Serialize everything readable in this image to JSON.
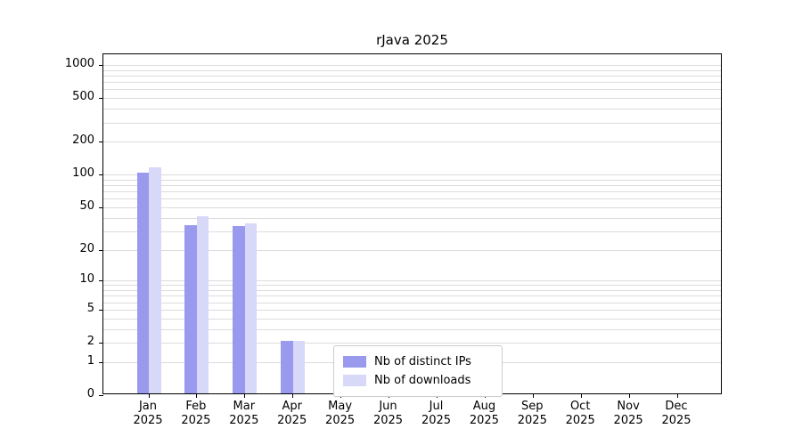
{
  "chart_data": {
    "type": "bar",
    "title": "rJava 2025",
    "categories": [
      "Jan 2025",
      "Feb 2025",
      "Mar 2025",
      "Apr 2025",
      "May 2025",
      "Jun 2025",
      "Jul 2025",
      "Aug 2025",
      "Sep 2025",
      "Oct 2025",
      "Nov 2025",
      "Dec 2025"
    ],
    "series": [
      {
        "name": "Nb of distinct IPs",
        "color": "#9999ee",
        "values": [
          101,
          33,
          32,
          2,
          0,
          0,
          0,
          0,
          0,
          0,
          0,
          0
        ]
      },
      {
        "name": "Nb of downloads",
        "color": "#d8d8f8",
        "values": [
          113,
          40,
          34,
          2,
          0,
          0,
          0,
          0,
          0,
          0,
          0,
          0
        ]
      }
    ],
    "yscale": "log1p",
    "yticks": [
      0,
      1,
      2,
      5,
      10,
      20,
      50,
      100,
      200,
      500,
      1000
    ],
    "ylim": [
      0,
      1250
    ],
    "xlabel": "",
    "ylabel": "",
    "grid": "horizontal-minor",
    "legend_position": "lower-center-inside"
  }
}
